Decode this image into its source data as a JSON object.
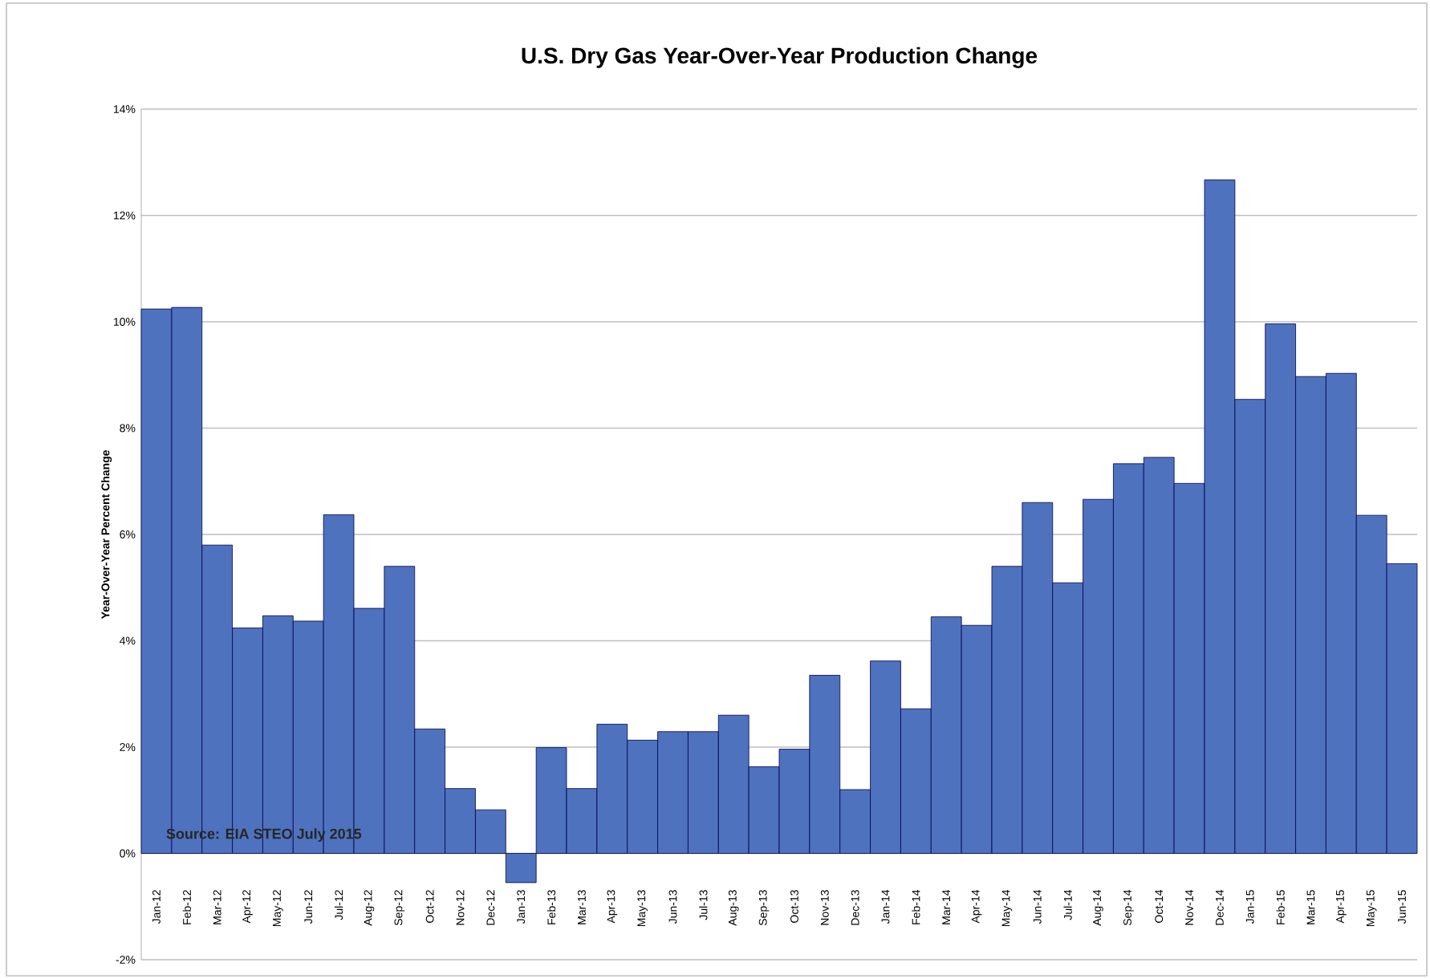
{
  "chart_data": {
    "type": "bar",
    "title": "U.S. Dry Gas Year-Over-Year Production Change",
    "ylabel": "Year-Over-Year Percent Change",
    "annotations": [
      "Source:  EIA STEO July 2015"
    ],
    "categories": [
      "Jan-12",
      "Feb-12",
      "Mar-12",
      "Apr-12",
      "May-12",
      "Jun-12",
      "Jul-12",
      "Aug-12",
      "Sep-12",
      "Oct-12",
      "Nov-12",
      "Dec-12",
      "Jan-13",
      "Feb-13",
      "Mar-13",
      "Apr-13",
      "May-13",
      "Jun-13",
      "Jul-13",
      "Aug-13",
      "Sep-13",
      "Oct-13",
      "Nov-13",
      "Dec-13",
      "Jan-14",
      "Feb-14",
      "Mar-14",
      "Apr-14",
      "May-14",
      "Jun-14",
      "Jul-14",
      "Aug-14",
      "Sep-14",
      "Oct-14",
      "Nov-14",
      "Dec-14",
      "Jan-15",
      "Feb-15",
      "Mar-15",
      "Apr-15",
      "May-15",
      "Jun-15"
    ],
    "values": [
      10.24,
      10.27,
      5.8,
      4.24,
      4.47,
      4.37,
      6.37,
      4.61,
      5.4,
      2.34,
      1.22,
      0.82,
      -0.55,
      1.99,
      1.22,
      2.43,
      2.13,
      2.29,
      2.29,
      2.6,
      1.63,
      1.96,
      3.35,
      1.2,
      3.62,
      2.72,
      4.45,
      4.29,
      5.4,
      6.6,
      5.09,
      6.66,
      7.33,
      7.45,
      6.96,
      12.67,
      8.54,
      9.96,
      8.97,
      9.03,
      6.36,
      5.45
    ],
    "color": "#4f72be",
    "ylim": [
      -2,
      14
    ],
    "yticks": [
      {
        "value": -2,
        "label": "-2%"
      },
      {
        "value": 0,
        "label": "0%"
      },
      {
        "value": 2,
        "label": "2%"
      },
      {
        "value": 4,
        "label": "4%"
      },
      {
        "value": 6,
        "label": "6%"
      },
      {
        "value": 8,
        "label": "8%"
      },
      {
        "value": 10,
        "label": "10%"
      },
      {
        "value": 12,
        "label": "12%"
      },
      {
        "value": 14,
        "label": "14%"
      }
    ],
    "grid": "y"
  }
}
